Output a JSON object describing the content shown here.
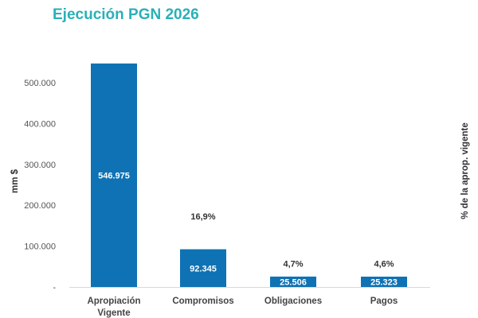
{
  "chart_data": {
    "type": "bar",
    "title": "Ejecución PGN 2026",
    "ylabel": "mm $",
    "y2label": "% de la aprop. vigente",
    "ylim": [
      0,
      500000
    ],
    "yticks": [
      0,
      100000,
      200000,
      300000,
      400000,
      500000
    ],
    "ytick_labels": [
      "-",
      "100.000",
      "200.000",
      "300.000",
      "400.000",
      "500.000"
    ],
    "grid": false,
    "categories": [
      "Apropiación Vigente",
      "Compromisos",
      "Obligaciones",
      "Pagos"
    ],
    "category_lines": [
      [
        "Apropiación",
        "Vigente"
      ],
      [
        "Compromisos"
      ],
      [
        "Obligaciones"
      ],
      [
        "Pagos"
      ]
    ],
    "values": [
      546975,
      92345,
      25506,
      25323
    ],
    "value_labels": [
      "546.975",
      "92.345",
      "25.506",
      "25.323"
    ],
    "percent_values": [
      null,
      16.9,
      4.7,
      4.6
    ],
    "percent_labels": [
      "",
      "16,9%",
      "4,7%",
      "4,6%"
    ],
    "colors": {
      "bar": "#0f72b4",
      "title": "#2ab0b8",
      "baseline": "#d9d9d9"
    }
  }
}
